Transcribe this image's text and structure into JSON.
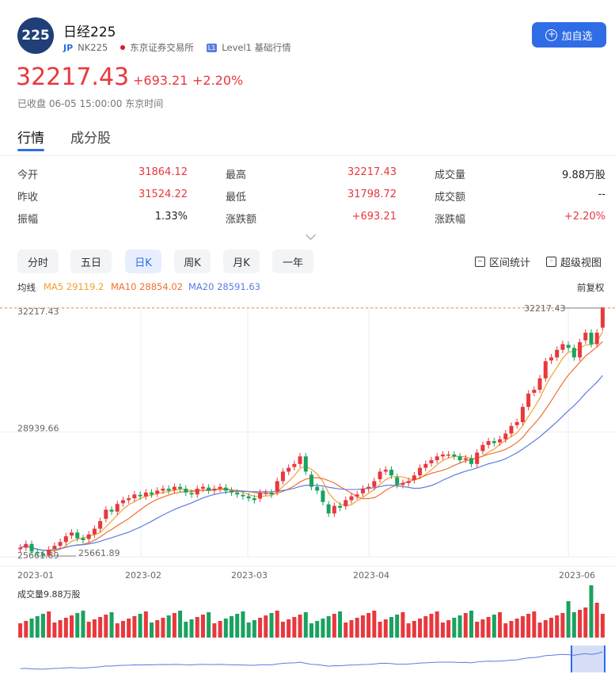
{
  "header": {
    "logo_text": "225",
    "title": "日经225",
    "market_tag": "JP",
    "code": "NK225",
    "exchange": "东京证券交易所",
    "level_tag": "L1",
    "level_text": "Level1 基础行情",
    "add_button": "加自选"
  },
  "quote": {
    "price": "32217.43",
    "change": "+693.21",
    "change_pct": "+2.20%",
    "status": "已收盘 06-05 15:00:00 东京时间"
  },
  "tabs": [
    "行情",
    "成分股"
  ],
  "stats": [
    {
      "label": "今开",
      "value": "31864.12"
    },
    {
      "label": "最高",
      "value": "32217.43"
    },
    {
      "label": "成交量",
      "value": "9.88万股"
    },
    {
      "label": "昨收",
      "value": "31524.22"
    },
    {
      "label": "最低",
      "value": "31798.72"
    },
    {
      "label": "成交额",
      "value": "--"
    },
    {
      "label": "振幅",
      "value": "1.33%"
    },
    {
      "label": "涨跌额",
      "value": "+693.21"
    },
    {
      "label": "涨跌幅",
      "value": "+2.20%"
    }
  ],
  "periods": [
    "分时",
    "五日",
    "日K",
    "周K",
    "月K",
    "一年"
  ],
  "tools": {
    "range_stats": "区间统计",
    "super_view": "超级视图"
  },
  "ma": {
    "label": "均线",
    "ma5": "MA5 29119.2",
    "ma10": "MA10 28854.02",
    "ma20": "MA20 28591.63",
    "adjust": "前复权"
  },
  "colors": {
    "up": "#e8383d",
    "down": "#1aa260",
    "accent": "#2f6ce6",
    "ma5": "#f0a030",
    "ma10": "#f07030",
    "ma20": "#5b7de0"
  },
  "chart_data": {
    "type": "candlestick",
    "y_ticks": [
      "32217.43",
      "28939.66",
      "25661.89"
    ],
    "x_ticks": [
      "2023-01",
      "2023-02",
      "2023-03",
      "2023-04",
      "2023-06"
    ],
    "high_marker": "32217.43",
    "low_marker": "25661.89",
    "ylim": [
      25661.89,
      32217.43
    ],
    "closes": [
      25900,
      26000,
      25800,
      25750,
      25700,
      25850,
      25950,
      26050,
      26200,
      26300,
      26150,
      26100,
      26250,
      26400,
      26600,
      26900,
      26850,
      27050,
      27150,
      27200,
      27300,
      27250,
      27350,
      27300,
      27400,
      27450,
      27400,
      27500,
      27450,
      27350,
      27300,
      27450,
      27500,
      27400,
      27450,
      27500,
      27400,
      27350,
      27300,
      27250,
      27200,
      27150,
      27350,
      27350,
      27300,
      27650,
      27900,
      28000,
      28100,
      28300,
      27900,
      27500,
      27400,
      27100,
      26800,
      27000,
      26950,
      27150,
      27250,
      27300,
      27450,
      27500,
      27650,
      27900,
      27950,
      27800,
      27550,
      27600,
      27650,
      27800,
      28000,
      28100,
      28200,
      28300,
      28350,
      28350,
      28300,
      28200,
      28250,
      28100,
      28400,
      28600,
      28700,
      28650,
      28750,
      28900,
      29100,
      29200,
      29600,
      29950,
      30050,
      30350,
      30800,
      30900,
      31100,
      31250,
      31150,
      30900,
      31300,
      31550,
      31250,
      31550,
      32217
    ],
    "volume_label": "成交量9.88万股"
  }
}
